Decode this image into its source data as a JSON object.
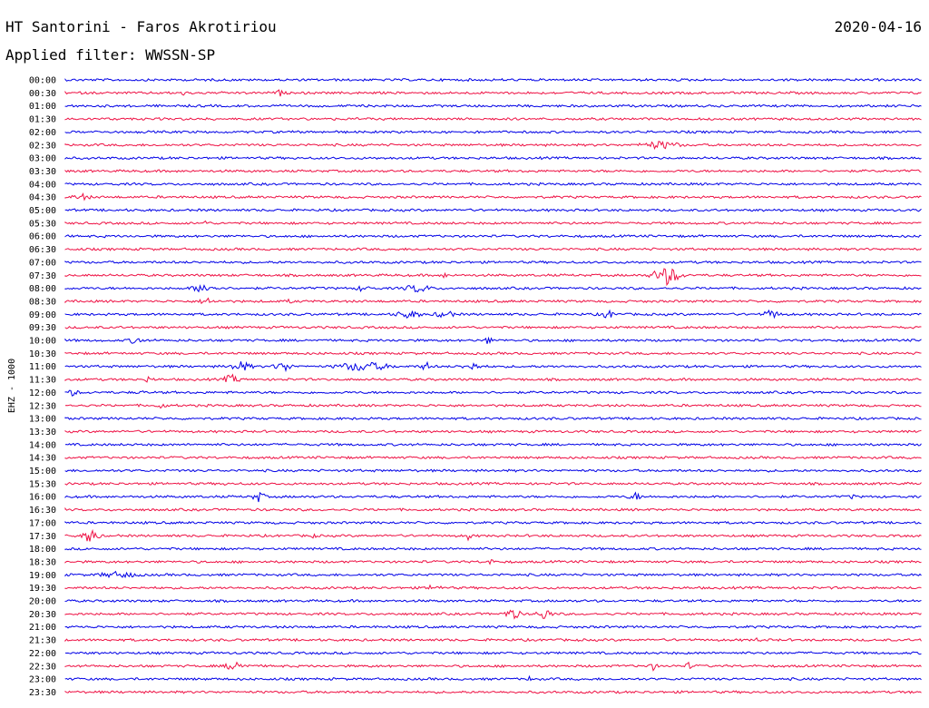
{
  "header": {
    "station": "HT Santorini - Faros Akrotiriou",
    "date": "2020-04-16",
    "filter": "Applied filter: WWSSN-SP"
  },
  "chart_data": {
    "type": "line",
    "ylabel": "EHZ - 1000",
    "colors": [
      "#0000e6",
      "#ee1144"
    ],
    "time_labels": [
      "00:00",
      "00:30",
      "01:00",
      "01:30",
      "02:00",
      "02:30",
      "03:00",
      "03:30",
      "04:00",
      "04:30",
      "05:00",
      "05:30",
      "06:00",
      "06:30",
      "07:00",
      "07:30",
      "08:00",
      "08:30",
      "09:00",
      "09:30",
      "10:00",
      "10:30",
      "11:00",
      "11:30",
      "12:00",
      "12:30",
      "13:00",
      "13:30",
      "14:00",
      "14:30",
      "15:00",
      "15:30",
      "16:00",
      "16:30",
      "17:00",
      "17:30",
      "18:00",
      "18:30",
      "19:00",
      "19:30",
      "20:00",
      "20:30",
      "21:00",
      "21:30",
      "22:00",
      "22:30",
      "23:00",
      "23:30"
    ]
  }
}
